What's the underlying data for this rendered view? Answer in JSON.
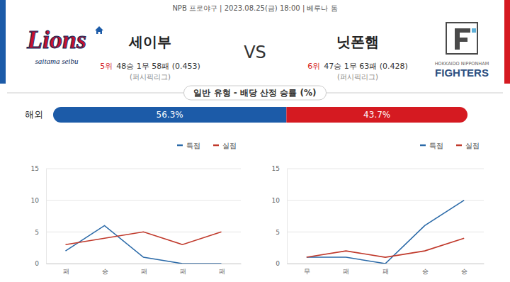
{
  "header": {
    "info": "NPB 프로야구  |  2023.08.25(금) 18:00  |  베루나 돔",
    "vs": "VS",
    "home": {
      "name": "세이부",
      "rank": "5위",
      "record": "48승 1무 58패 (0.453)",
      "league": "(퍼시픽리그)",
      "logo_text": "Lions",
      "logo_subtext": "saitama seibu"
    },
    "away": {
      "name": "닛폰햄",
      "rank": "6위",
      "record": "47승 1무 63패 (0.428)",
      "league": "(퍼시픽리그)",
      "logo_subtext": "HOKKAIDO NIPPONHAM",
      "logo_text": "FIGHTERS"
    }
  },
  "chart_data": [
    {
      "type": "bar",
      "title": "일반 유형 - 배당 산정 승률 (%)",
      "orientation": "horizontal",
      "stacked": true,
      "categories": [
        "해외"
      ],
      "series": [
        {
          "color": "#1c5ba8",
          "values": [
            56.3
          ],
          "value_labels": [
            "56.3%"
          ]
        },
        {
          "color": "#d51a21",
          "values": [
            43.7
          ],
          "value_labels": [
            "43.7%"
          ]
        }
      ],
      "xlim": [
        0,
        100
      ],
      "tick_labels": "y",
      "data_labels": true
    },
    {
      "type": "line",
      "categories": [
        "패",
        "승",
        "패",
        "패",
        "패"
      ],
      "series": [
        {
          "name": "득점",
          "color": "#2b6aa8",
          "values": [
            2,
            6,
            1,
            0,
            0
          ],
          "marker": "none"
        },
        {
          "name": "실점",
          "color": "#c0392b",
          "values": [
            3,
            4,
            5,
            3,
            5
          ],
          "marker": "none"
        }
      ],
      "ylim": [
        0,
        15
      ],
      "yticks": [
        0,
        5,
        10,
        15
      ],
      "grid": true,
      "legend": "top right"
    },
    {
      "type": "line",
      "categories": [
        "무",
        "패",
        "패",
        "승",
        "승"
      ],
      "series": [
        {
          "name": "득점",
          "color": "#2b6aa8",
          "values": [
            1,
            1,
            0,
            6,
            10
          ],
          "marker": "none"
        },
        {
          "name": "실점",
          "color": "#c0392b",
          "values": [
            1,
            2,
            1,
            2,
            4
          ],
          "marker": "none"
        }
      ],
      "ylim": [
        0,
        15
      ],
      "yticks": [
        0,
        5,
        10,
        15
      ],
      "grid": true,
      "legend": "top right"
    }
  ]
}
